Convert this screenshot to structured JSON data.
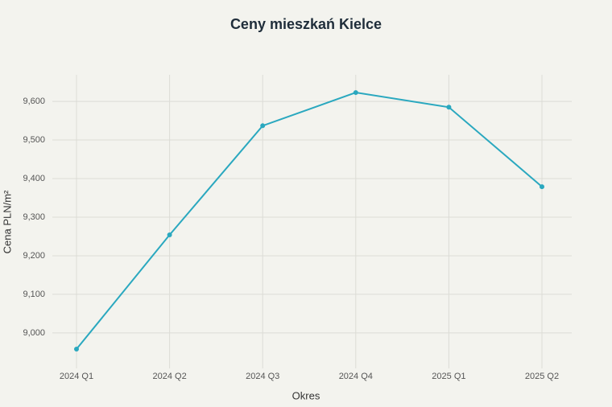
{
  "chart_data": {
    "type": "line",
    "title": "Ceny mieszkań Kielce",
    "x_label": "Okres",
    "y_label": "Cena PLN/m²",
    "categories": [
      "2024 Q1",
      "2024 Q2",
      "2024 Q3",
      "2024 Q4",
      "2025 Q1",
      "2025 Q2"
    ],
    "values": [
      8958,
      9254,
      9537,
      9623,
      9585,
      9379
    ],
    "color": "#2aa8bf",
    "ylim": [
      8908,
      9669
    ],
    "yticks": [
      {
        "value": 9000,
        "label": "9,000"
      },
      {
        "value": 9100,
        "label": "9,100"
      },
      {
        "value": 9200,
        "label": "9,200"
      },
      {
        "value": 9300,
        "label": "9,300"
      },
      {
        "value": 9400,
        "label": "9,400"
      },
      {
        "value": 9500,
        "label": "9,500"
      },
      {
        "value": 9600,
        "label": "9,600"
      }
    ],
    "grid": true
  }
}
